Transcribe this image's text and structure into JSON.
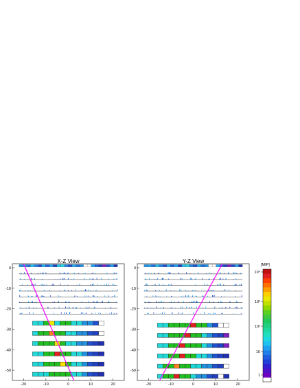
{
  "chart_data": [
    {
      "type": "heatmap",
      "title": "X-Z View",
      "xlim": [
        -25,
        25
      ],
      "ylim": [
        -55,
        2
      ],
      "x_ticks": [
        -20,
        -10,
        0,
        10,
        20
      ],
      "y_ticks": [
        0,
        -10,
        -20,
        -30,
        -40,
        -50
      ],
      "track": {
        "x": [
          -20,
          2.5
        ],
        "z": [
          2,
          -55
        ]
      },
      "scintillator_layer": {
        "z": 1,
        "x": [
          -22,
          22
        ]
      },
      "strip_layers_z": [
        -3,
        -5.8,
        -8.6,
        -11.4,
        -14.2,
        -17,
        -19.8,
        -22.6
      ],
      "bar_layers": [
        {
          "z": -27,
          "x": [
            -16,
            16
          ],
          "colors": [
            "#20d8d8",
            "#20d8d8",
            "#20c020",
            "#e8e800",
            "#20d8d8",
            "#20c020",
            "#20c020",
            "#20d8d8",
            "#20d8d8",
            "#2090e0",
            "#2090e0",
            "#2050d0",
            "#ffffff"
          ]
        },
        {
          "z": -32,
          "x": [
            -16,
            16
          ],
          "colors": [
            "#20d8d8",
            "#20c020",
            "#20c020",
            "#ff8020",
            "#20c020",
            "#20c020",
            "#20d8d8",
            "#20d8d8",
            "#2090e0",
            "#2090e0",
            "#2050d0",
            "#2040c0",
            "#ffffff"
          ]
        },
        {
          "z": -37,
          "x": [
            -16,
            16
          ],
          "colors": [
            "#20d8d8",
            "#20c020",
            "#20c020",
            "#20c020",
            "#e8e800",
            "#20c020",
            "#20d8d8",
            "#20d8d8",
            "#2090e0",
            "#2090e0",
            "#2050d0",
            "#2040c0",
            "#2030b0"
          ]
        },
        {
          "z": -42,
          "x": [
            -16,
            16
          ],
          "colors": [
            "#20d8d8",
            "#20d8d8",
            "#20c020",
            "#20c020",
            "#e02020",
            "#20c020",
            "#20c020",
            "#20d8d8",
            "#20d8d8",
            "#2090e0",
            "#2050d0",
            "#2040c0",
            "#2030b0"
          ]
        },
        {
          "z": -47,
          "x": [
            -16,
            16
          ],
          "colors": [
            "#20d8d8",
            "#20d8d8",
            "#20c020",
            "#20c020",
            "#20c020",
            "#ffe000",
            "#20c020",
            "#20d8d8",
            "#20d8d8",
            "#2090e0",
            "#2050d0",
            "#2040c0",
            "#2030b0"
          ]
        },
        {
          "z": -52,
          "x": [
            -16,
            16
          ],
          "colors": [
            "#20d8d8",
            "#20d8d8",
            "#20d8d8",
            "#20c020",
            "#20c020",
            "#20c020",
            "#20c020",
            "#20d8d8",
            "#20d8d8",
            "#2090e0",
            "#2050d0",
            "#2040c0",
            "#2030b0"
          ]
        }
      ]
    },
    {
      "type": "heatmap",
      "title": "Y-Z View",
      "xlim": [
        -25,
        25
      ],
      "ylim": [
        -55,
        2
      ],
      "x_ticks": [
        -20,
        -10,
        0,
        10,
        20
      ],
      "y_ticks": [
        0,
        -10,
        -20,
        -30,
        -40,
        -50
      ],
      "track": {
        "x": [
          -15,
          13
        ],
        "z": [
          -55,
          2
        ]
      },
      "scintillator_layer": {
        "z": 1,
        "x": [
          -22,
          22
        ]
      },
      "strip_layers_z": [
        -3,
        -5.8,
        -8.6,
        -11.4,
        -14.2,
        -17,
        -19.8,
        -22.6
      ],
      "bar_layers": [
        {
          "z": -28,
          "x": [
            -16,
            16
          ],
          "colors": [
            "#20d8d8",
            "#20d8d8",
            "#20c020",
            "#20c020",
            "#20c020",
            "#20c020",
            "#e02020",
            "#20c020",
            "#20c020",
            "#2090e0",
            "#2050d0",
            "#ffffff",
            "#ffffff"
          ]
        },
        {
          "z": -33,
          "x": [
            -16,
            16
          ],
          "colors": [
            "#20d8d8",
            "#20d8d8",
            "#20c020",
            "#20c020",
            "#20c020",
            "#e02020",
            "#20c020",
            "#20c020",
            "#20d8d8",
            "#2090e0",
            "#2050d0",
            "#2040c0",
            "#8020c0"
          ]
        },
        {
          "z": -38,
          "x": [
            -16,
            16
          ],
          "colors": [
            "#20d8d8",
            "#20d8d8",
            "#20c020",
            "#20c020",
            "#e02020",
            "#20c020",
            "#20c020",
            "#20c020",
            "#20d8d8",
            "#2090e0",
            "#2050d0",
            "#2040c0",
            "#8020c0"
          ]
        },
        {
          "z": -43,
          "x": [
            -16,
            16
          ],
          "colors": [
            "#20d8d8",
            "#20d8d8",
            "#20c020",
            "#20c020",
            "#e02020",
            "#20c020",
            "#20c020",
            "#20d8d8",
            "#20d8d8",
            "#2090e0",
            "#2050d0",
            "#2040c0",
            "#2030b0"
          ]
        },
        {
          "z": -48,
          "x": [
            -16,
            16
          ],
          "colors": [
            "#20d8d8",
            "#20c020",
            "#20c020",
            "#ff8020",
            "#20c020",
            "#20c020",
            "#20d8d8",
            "#20d8d8",
            "#2090e0",
            "#2090e0",
            "#2050d0",
            "#2040c0",
            "#ffffff"
          ]
        },
        {
          "z": -53,
          "x": [
            -16,
            16
          ],
          "colors": [
            "#20d8d8",
            "#20c020",
            "#20c020",
            "#e02020",
            "#20c020",
            "#20c020",
            "#20d8d8",
            "#2090e0",
            "#2090e0",
            "#2050d0",
            "#2040c0",
            "#ffffff",
            "#2030b0"
          ]
        }
      ]
    }
  ],
  "colorbar": {
    "unit_label": "[MIP]",
    "tick_labels": [
      "1",
      "10",
      "10²",
      "10³",
      "10⁴"
    ],
    "colors": [
      "#ffffff",
      "#7000c0",
      "#5010c8",
      "#3020d0",
      "#2040d8",
      "#2060e0",
      "#2080e8",
      "#20a0f0",
      "#20c0f0",
      "#20d8e0",
      "#20e0c0",
      "#20d8a0",
      "#20d080",
      "#20c860",
      "#40c840",
      "#60d020",
      "#90d800",
      "#c0e000",
      "#e8e800",
      "#ffd000",
      "#ffa000",
      "#ff7000",
      "#ff4000",
      "#e02020",
      "#c01010"
    ]
  },
  "colors": {
    "track": "#ff00ff",
    "axis": "#000000"
  }
}
